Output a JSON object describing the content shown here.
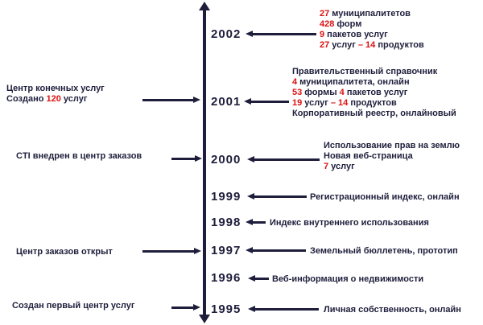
{
  "colors": {
    "ink": "#1e1e3c",
    "red": "#dd1111",
    "background": "#ffffff"
  },
  "years": [
    "2002",
    "2001",
    "2000",
    "1999",
    "1998",
    "1997",
    "1996",
    "1995"
  ],
  "right_annotations": [
    {
      "year": "2002",
      "lines": [
        [
          {
            "t": "27",
            "red": true
          },
          {
            "t": " муниципалитетов"
          }
        ],
        [
          {
            "t": "428",
            "red": true
          },
          {
            "t": " форм"
          }
        ],
        [
          {
            "t": "9",
            "red": true
          },
          {
            "t": " пакетов услуг"
          }
        ],
        [
          {
            "t": "27",
            "red": true
          },
          {
            "t": " услуг "
          },
          {
            "t": "– 14",
            "red": true
          },
          {
            "t": " продуктов"
          }
        ]
      ]
    },
    {
      "year": "2001",
      "lines": [
        [
          {
            "t": "Правительственный справочник"
          }
        ],
        [
          {
            "t": "4",
            "red": true
          },
          {
            "t": " муниципалитета, онлайн"
          }
        ],
        [
          {
            "t": "53",
            "red": true
          },
          {
            "t": " формы "
          },
          {
            "t": "4",
            "red": true
          },
          {
            "t": " пакетов услуг"
          }
        ],
        [
          {
            "t": "19",
            "red": true
          },
          {
            "t": " услуг "
          },
          {
            "t": "– 14",
            "red": true
          },
          {
            "t": " продуктов"
          }
        ],
        [
          {
            "t": "Корпоративный реестр, онлайновый"
          }
        ]
      ]
    },
    {
      "year": "2000",
      "lines": [
        [
          {
            "t": "Использование прав на землю"
          }
        ],
        [
          {
            "t": "Новая веб-страница"
          }
        ],
        [
          {
            "t": "7",
            "red": true
          },
          {
            "t": " услуг"
          }
        ]
      ]
    },
    {
      "year": "1999",
      "lines": [
        [
          {
            "t": "Регистрационный индекс, онлайн"
          }
        ]
      ]
    },
    {
      "year": "1998",
      "lines": [
        [
          {
            "t": "Индекс внутреннего использования"
          }
        ]
      ]
    },
    {
      "year": "1997",
      "lines": [
        [
          {
            "t": "Земельный бюллетень, прототип"
          }
        ]
      ]
    },
    {
      "year": "1996",
      "lines": [
        [
          {
            "t": "Веб-информация о недвижимости"
          }
        ]
      ]
    },
    {
      "year": "1995",
      "lines": [
        [
          {
            "t": "Личная собственность, онлайн"
          }
        ]
      ]
    }
  ],
  "left_annotations": [
    {
      "year": "2001",
      "lines": [
        [
          {
            "t": "Центр конечных услуг"
          }
        ],
        [
          {
            "t": "Создано "
          },
          {
            "t": "120",
            "red": true
          },
          {
            "t": " услуг"
          }
        ]
      ]
    },
    {
      "year": "2000",
      "lines": [
        [
          {
            "t": "CTI внедрен в центр заказов"
          }
        ]
      ]
    },
    {
      "year": "1997",
      "lines": [
        [
          {
            "t": "Центр заказов открыт"
          }
        ]
      ]
    },
    {
      "year": "1995",
      "lines": [
        [
          {
            "t": "Создан первый центр услуг"
          }
        ]
      ]
    }
  ]
}
